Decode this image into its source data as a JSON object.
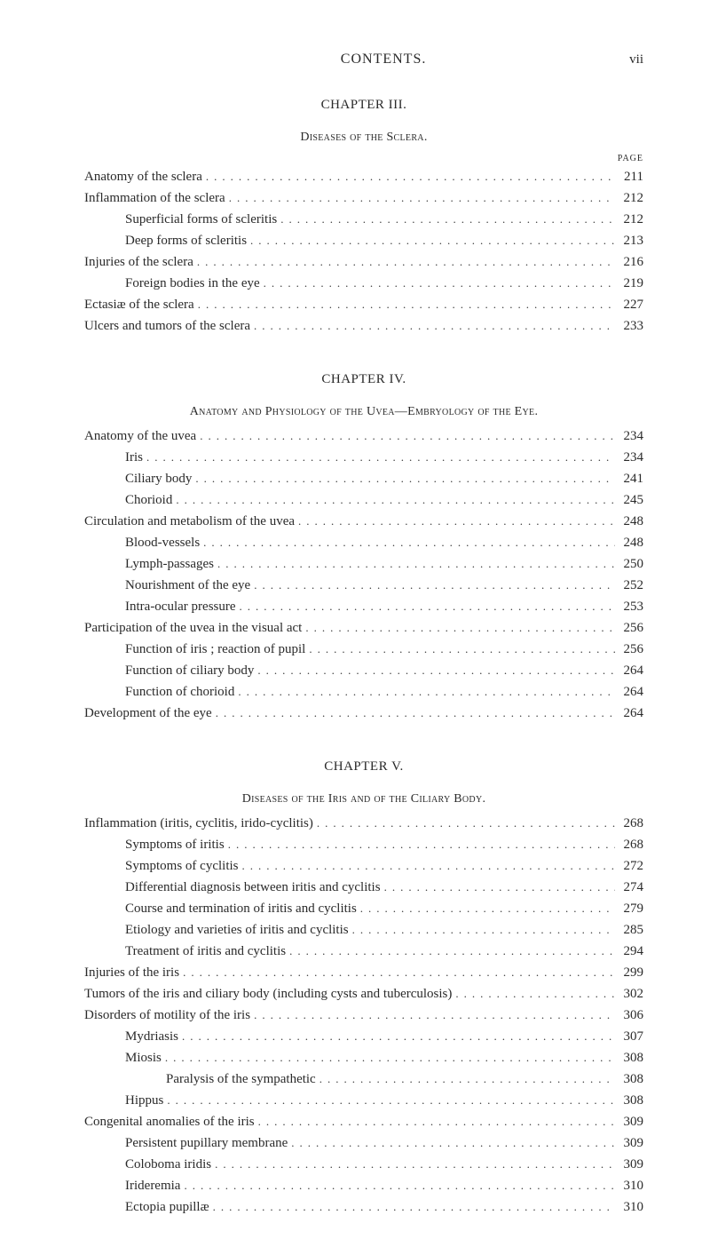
{
  "header": {
    "title": "CONTENTS.",
    "pageNumeral": "vii"
  },
  "pageLabel": "PAGE",
  "dots": ".................................................................",
  "chapters": [
    {
      "title": "CHAPTER III.",
      "sectionTitle": "Diseases of the Sclera.",
      "showPageLabel": true,
      "entries": [
        {
          "label": "Anatomy of the sclera",
          "page": "211",
          "indent": 0
        },
        {
          "label": "Inflammation of the sclera",
          "page": "212",
          "indent": 0
        },
        {
          "label": "Superficial forms of scleritis",
          "page": "212",
          "indent": 1
        },
        {
          "label": "Deep forms of scleritis",
          "page": "213",
          "indent": 1
        },
        {
          "label": "Injuries of the sclera",
          "page": "216",
          "indent": 0
        },
        {
          "label": "Foreign bodies in the eye",
          "page": "219",
          "indent": 1
        },
        {
          "label": "Ectasiæ of the sclera",
          "page": "227",
          "indent": 0
        },
        {
          "label": "Ulcers and tumors of the sclera",
          "page": "233",
          "indent": 0
        }
      ]
    },
    {
      "title": "CHAPTER IV.",
      "sectionTitle": "Anatomy and Physiology of the Uvea—Embryology of the Eye.",
      "showPageLabel": false,
      "entries": [
        {
          "label": "Anatomy of the uvea",
          "page": "234",
          "indent": 0
        },
        {
          "label": "Iris",
          "page": "234",
          "indent": 1
        },
        {
          "label": "Ciliary body",
          "page": "241",
          "indent": 1
        },
        {
          "label": "Chorioid",
          "page": "245",
          "indent": 1
        },
        {
          "label": "Circulation and metabolism of the uvea",
          "page": "248",
          "indent": 0
        },
        {
          "label": "Blood-vessels",
          "page": "248",
          "indent": 1
        },
        {
          "label": "Lymph-passages",
          "page": "250",
          "indent": 1
        },
        {
          "label": "Nourishment of the eye",
          "page": "252",
          "indent": 1
        },
        {
          "label": "Intra-ocular pressure",
          "page": "253",
          "indent": 1
        },
        {
          "label": "Participation of the uvea in the visual act",
          "page": "256",
          "indent": 0
        },
        {
          "label": "Function of iris ; reaction of pupil",
          "page": "256",
          "indent": 1
        },
        {
          "label": "Function of ciliary body",
          "page": "264",
          "indent": 1
        },
        {
          "label": "Function of chorioid",
          "page": "264",
          "indent": 1
        },
        {
          "label": "Development of the eye",
          "page": "264",
          "indent": 0
        }
      ]
    },
    {
      "title": "CHAPTER V.",
      "sectionTitle": "Diseases of the Iris and of the Ciliary Body.",
      "showPageLabel": false,
      "entries": [
        {
          "label": "Inflammation (iritis, cyclitis, irido-cyclitis)",
          "page": "268",
          "indent": 0
        },
        {
          "label": "Symptoms of iritis",
          "page": "268",
          "indent": 1
        },
        {
          "label": "Symptoms of cyclitis",
          "page": "272",
          "indent": 1
        },
        {
          "label": "Differential diagnosis between iritis and cyclitis",
          "page": "274",
          "indent": 1
        },
        {
          "label": "Course and termination of iritis and cyclitis",
          "page": "279",
          "indent": 1
        },
        {
          "label": "Etiology and varieties of iritis and cyclitis",
          "page": "285",
          "indent": 1
        },
        {
          "label": "Treatment of iritis and cyclitis",
          "page": "294",
          "indent": 1
        },
        {
          "label": "Injuries of the iris",
          "page": "299",
          "indent": 0
        },
        {
          "label": "Tumors of the iris and ciliary body (including cysts and tuberculosis)",
          "page": "302",
          "indent": 0
        },
        {
          "label": "Disorders of motility of the iris",
          "page": "306",
          "indent": 0
        },
        {
          "label": "Mydriasis",
          "page": "307",
          "indent": 1
        },
        {
          "label": "Miosis",
          "page": "308",
          "indent": 1
        },
        {
          "label": "Paralysis of the sympathetic",
          "page": "308",
          "indent": 2
        },
        {
          "label": "Hippus",
          "page": "308",
          "indent": 1
        },
        {
          "label": "Congenital anomalies of the iris",
          "page": "309",
          "indent": 0
        },
        {
          "label": "Persistent pupillary membrane",
          "page": "309",
          "indent": 1
        },
        {
          "label": "Coloboma iridis",
          "page": "309",
          "indent": 1
        },
        {
          "label": "Irideremia",
          "page": "310",
          "indent": 1
        },
        {
          "label": "Ectopia pupillæ",
          "page": "310",
          "indent": 1
        }
      ]
    }
  ]
}
